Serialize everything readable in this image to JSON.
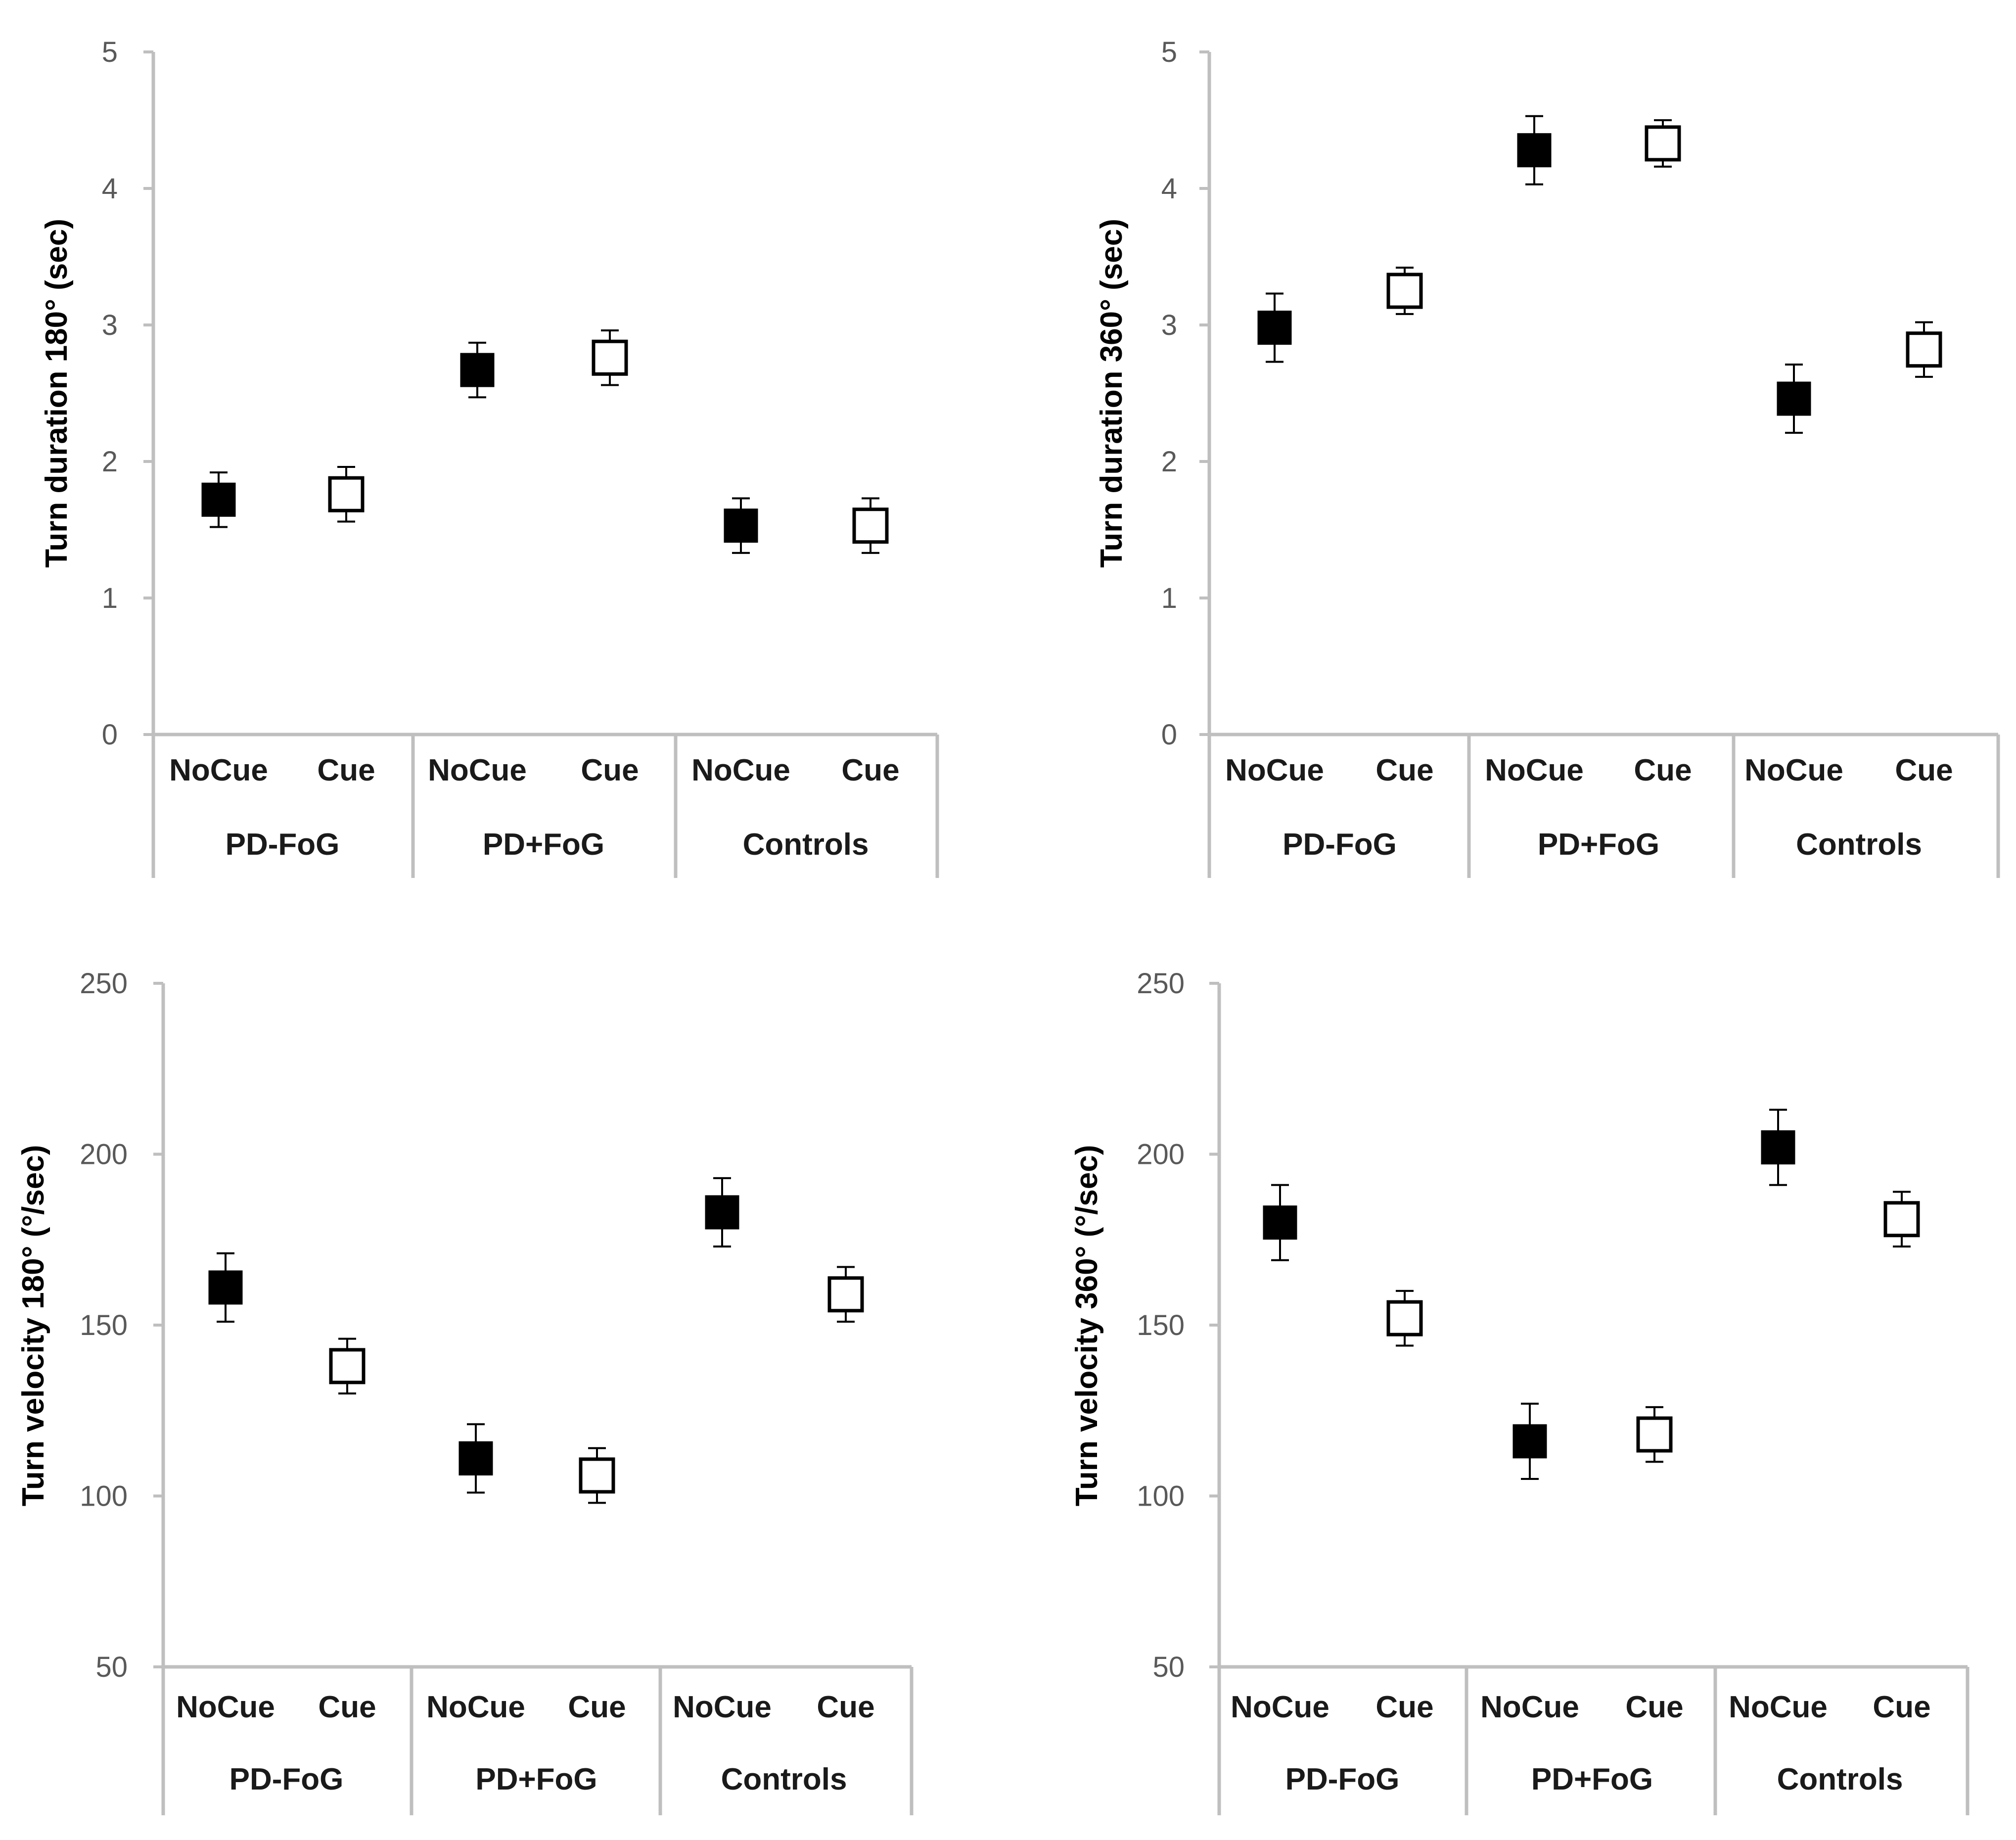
{
  "colors": {
    "axis": "#bfbfbf",
    "marker_filled": "#000000",
    "marker_open_fill": "#ffffff",
    "marker_stroke": "#000000",
    "errorbar": "#000000"
  },
  "chart_data": [
    {
      "type": "scatter",
      "title": "",
      "ylabel": "Turn duration 180° (sec)",
      "ylim": [
        0,
        5
      ],
      "yticks": [
        0,
        1,
        2,
        3,
        4,
        5
      ],
      "grid": false,
      "categories": [
        "NoCue",
        "Cue",
        "NoCue",
        "Cue",
        "NoCue",
        "Cue"
      ],
      "groups": [
        "PD-FoG",
        "PD+FoG",
        "Controls"
      ],
      "values": [
        1.72,
        1.76,
        2.67,
        2.76,
        1.53,
        1.53
      ],
      "errors": [
        0.2,
        0.2,
        0.2,
        0.2,
        0.2,
        0.2
      ],
      "markers": [
        "filled",
        "open",
        "filled",
        "open",
        "filled",
        "open"
      ]
    },
    {
      "type": "scatter",
      "title": "",
      "ylabel": "Turn duration 360° (sec)",
      "ylim": [
        0,
        5
      ],
      "yticks": [
        0,
        1,
        2,
        3,
        4,
        5
      ],
      "grid": false,
      "categories": [
        "NoCue",
        "Cue",
        "NoCue",
        "Cue",
        "NoCue",
        "Cue"
      ],
      "groups": [
        "PD-FoG",
        "PD+FoG",
        "Controls"
      ],
      "values": [
        2.98,
        3.25,
        4.28,
        4.33,
        2.46,
        2.82
      ],
      "errors": [
        0.25,
        0.17,
        0.25,
        0.17,
        0.25,
        0.2
      ],
      "markers": [
        "filled",
        "open",
        "filled",
        "open",
        "filled",
        "open"
      ]
    },
    {
      "type": "scatter",
      "title": "",
      "ylabel": "Turn velocity 180° (°/sec)",
      "ylim": [
        50,
        250
      ],
      "yticks": [
        50,
        100,
        150,
        200,
        250
      ],
      "grid": false,
      "categories": [
        "NoCue",
        "Cue",
        "NoCue",
        "Cue",
        "NoCue",
        "Cue"
      ],
      "groups": [
        "PD-FoG",
        "PD+FoG",
        "Controls"
      ],
      "values": [
        161,
        138,
        111,
        106,
        183,
        159
      ],
      "errors": [
        10,
        8,
        10,
        8,
        10,
        8
      ],
      "markers": [
        "filled",
        "open",
        "filled",
        "open",
        "filled",
        "open"
      ]
    },
    {
      "type": "scatter",
      "title": "",
      "ylabel": "Turn velocity 360° (°/sec)",
      "ylim": [
        50,
        250
      ],
      "yticks": [
        50,
        100,
        150,
        200,
        250
      ],
      "grid": false,
      "categories": [
        "NoCue",
        "Cue",
        "NoCue",
        "Cue",
        "NoCue",
        "Cue"
      ],
      "groups": [
        "PD-FoG",
        "PD+FoG",
        "Controls"
      ],
      "values": [
        180,
        152,
        116,
        118,
        202,
        181
      ],
      "errors": [
        11,
        8,
        11,
        8,
        11,
        8
      ],
      "markers": [
        "filled",
        "open",
        "filled",
        "open",
        "filled",
        "open"
      ]
    }
  ]
}
